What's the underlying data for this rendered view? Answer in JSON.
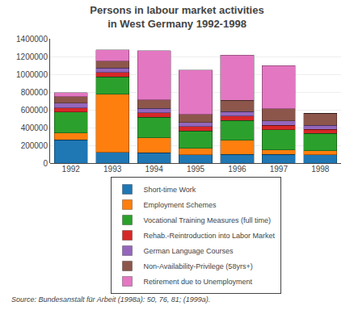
{
  "chart_data": {
    "type": "bar",
    "stacked": true,
    "title": "Persons in labour market activities",
    "subtitle": "in West Germany 1992-1998",
    "categories": [
      "1992",
      "1993",
      "1994",
      "1995",
      "1996",
      "1997",
      "1998"
    ],
    "series": [
      {
        "name": "Short-time Work",
        "values": [
          260000,
          120000,
          115000,
          95000,
          100000,
          100000,
          95000
        ]
      },
      {
        "name": "Employment Schemes",
        "values": [
          80000,
          655000,
          170000,
          70000,
          155000,
          50000,
          45000
        ]
      },
      {
        "name": "Vocational Training Measures (full time)",
        "values": [
          235000,
          195000,
          230000,
          195000,
          225000,
          225000,
          195000
        ]
      },
      {
        "name": "Rehab.-Reintroduction into Labor Market",
        "values": [
          45000,
          50000,
          50000,
          50000,
          50000,
          50000,
          45000
        ]
      },
      {
        "name": "German Language Courses",
        "values": [
          55000,
          50000,
          50000,
          45000,
          50000,
          50000,
          45000
        ]
      },
      {
        "name": "Non-Availability-Privilege (58yrs+)",
        "values": [
          75000,
          80000,
          95000,
          95000,
          125000,
          135000,
          135000
        ]
      },
      {
        "name": "Retirement due to Unemployment",
        "values": [
          45000,
          125000,
          555000,
          500000,
          510000,
          490000,
          0
        ]
      }
    ],
    "ylim": [
      0,
      1400000
    ],
    "yticks": [
      0,
      200000,
      400000,
      600000,
      800000,
      1000000,
      1200000,
      1400000
    ],
    "grid": true,
    "legend": "bottom",
    "annotations": [
      "Source: Bundesanstalt für Arbeit (1998a): 50, 76, 81; (1999a)."
    ]
  }
}
